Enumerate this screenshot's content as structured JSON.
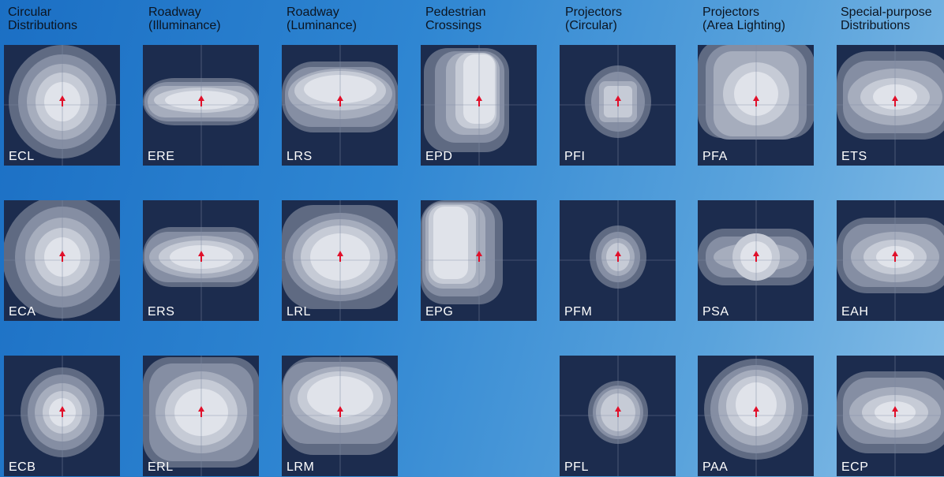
{
  "columns": [
    {
      "line1": "Circular",
      "line2": "Distributions"
    },
    {
      "line1": "Roadway",
      "line2": "(Illuminance)"
    },
    {
      "line1": "Roadway",
      "line2": "(Luminance)"
    },
    {
      "line1": "Pedestrian",
      "line2": "Crossings"
    },
    {
      "line1": "Projectors",
      "line2": "(Circular)"
    },
    {
      "line1": "Projectors",
      "line2": "(Area Lighting)"
    },
    {
      "line1": "Special-purpose",
      "line2": "Distributions"
    }
  ],
  "panels": [
    {
      "code": "ECL",
      "shape": "circle-large"
    },
    {
      "code": "ERE",
      "shape": "wide-flat"
    },
    {
      "code": "LRS",
      "shape": "wide-round"
    },
    {
      "code": "EPD",
      "shape": "ped-d"
    },
    {
      "code": "PFI",
      "shape": "proj-ring"
    },
    {
      "code": "PFA",
      "shape": "area-heart"
    },
    {
      "code": "ETS",
      "shape": "special-t"
    },
    {
      "code": "ECA",
      "shape": "circle-full"
    },
    {
      "code": "ERS",
      "shape": "wide-mid"
    },
    {
      "code": "LRL",
      "shape": "round-tall"
    },
    {
      "code": "EPG",
      "shape": "ped-g"
    },
    {
      "code": "PFM",
      "shape": "proj-small"
    },
    {
      "code": "PSA",
      "shape": "cross-wide"
    },
    {
      "code": "EAH",
      "shape": "special-h"
    },
    {
      "code": "ECB",
      "shape": "circle-small"
    },
    {
      "code": "ERL",
      "shape": "wide-tall"
    },
    {
      "code": "LRM",
      "shape": "round-mid"
    },
    {
      "code": "PFL",
      "shape": "proj-round"
    },
    {
      "code": "PAA",
      "shape": "area-round"
    },
    {
      "code": "ECP",
      "shape": "special-p"
    }
  ],
  "colors": {
    "panel": "#1c2c4e",
    "shades": [
      "#5f6a82",
      "#858ea3",
      "#a6adbd",
      "#c6cbd6",
      "#e0e3ea"
    ],
    "marker": "#e0102a",
    "crosshair": "#7f8aa3"
  }
}
